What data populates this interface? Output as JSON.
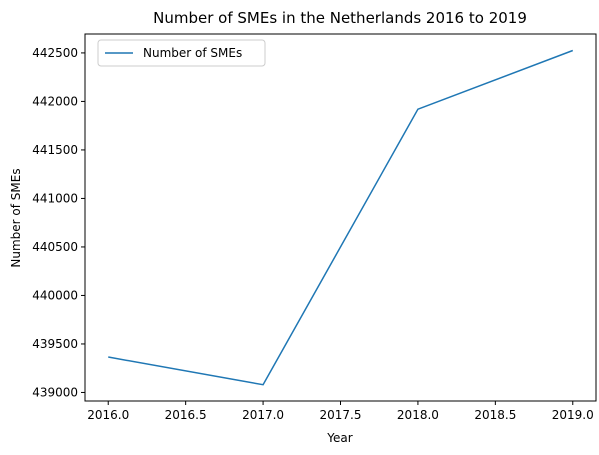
{
  "chart_data": {
    "type": "line",
    "title": "Number of SMEs in the Netherlands 2016 to 2019",
    "xlabel": "Year",
    "ylabel": "Number of SMEs",
    "x": [
      2016,
      2017,
      2018,
      2019
    ],
    "series": [
      {
        "name": "Number of SMEs",
        "values": [
          439365,
          439080,
          441920,
          442525
        ],
        "color": "#1f77b4"
      }
    ],
    "xlim": [
      2015.85,
      2019.15
    ],
    "ylim": [
      438912,
      442695
    ],
    "xticks": [
      "2016.0",
      "2016.5",
      "2017.0",
      "2017.5",
      "2018.0",
      "2018.5",
      "2019.0"
    ],
    "yticks": [
      "439000",
      "439500",
      "440000",
      "440500",
      "441000",
      "441500",
      "442000",
      "442500"
    ],
    "grid": false,
    "legend_position": "upper-left"
  }
}
